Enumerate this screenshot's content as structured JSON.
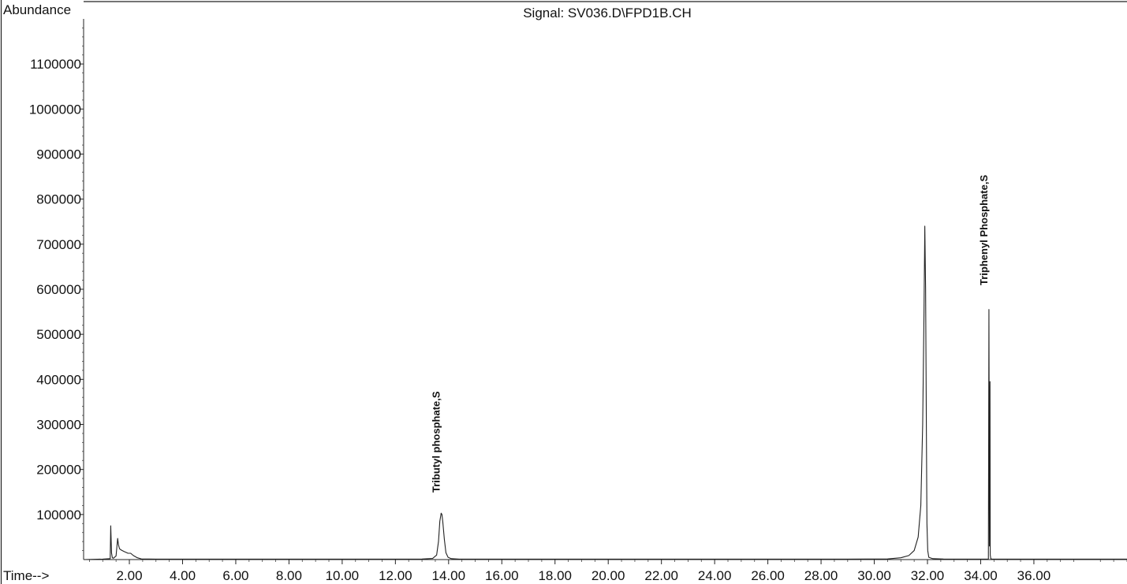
{
  "chart_data": {
    "type": "line",
    "title": "Signal: SV036.D\\FPD1B.CH",
    "ylabel": "Abundance",
    "xlabel": "Time-->",
    "xlim": [
      0.28,
      39.5
    ],
    "ylim": [
      0,
      1200000
    ],
    "x_ticks": [
      "2.00",
      "4.00",
      "6.00",
      "8.00",
      "10.00",
      "12.00",
      "14.00",
      "16.00",
      "18.00",
      "20.00",
      "22.00",
      "24.00",
      "26.00",
      "28.00",
      "30.00",
      "32.00",
      "34.00",
      "36.00"
    ],
    "y_ticks": [
      "100000",
      "200000",
      "300000",
      "400000",
      "500000",
      "600000",
      "700000",
      "800000",
      "900000",
      "1000000",
      "1100000"
    ],
    "grid": false,
    "series": [
      {
        "x": [
          0.28,
          1.0,
          1.28,
          1.3,
          1.33,
          1.36,
          1.4,
          1.5,
          1.56,
          1.59,
          1.63,
          1.7,
          1.8,
          1.95,
          2.05,
          2.15,
          2.3,
          2.45,
          3.0,
          6.0,
          10.0,
          12.0,
          13.0,
          13.4,
          13.55,
          13.62,
          13.67,
          13.72,
          13.75,
          13.78,
          13.84,
          13.9,
          13.98,
          14.1,
          14.4,
          16.0,
          20.0,
          25.0,
          29.0,
          30.5,
          31.0,
          31.3,
          31.5,
          31.65,
          31.75,
          31.82,
          31.87,
          31.9,
          31.93,
          31.96,
          31.98,
          32.01,
          32.05,
          32.2,
          32.6,
          33.0,
          33.8,
          34.29,
          34.31,
          34.33,
          34.35,
          34.36,
          34.38,
          34.42,
          35.0,
          37.0,
          39.5
        ],
        "y": [
          0,
          1000,
          2000,
          75000,
          15000,
          4000,
          3000,
          8000,
          47000,
          33000,
          24000,
          21000,
          18000,
          14000,
          14000,
          9000,
          4000,
          1500,
          1000,
          1000,
          1000,
          1000,
          1200,
          2500,
          10000,
          40000,
          85000,
          103000,
          100000,
          85000,
          45000,
          15000,
          5000,
          2000,
          1000,
          1000,
          1000,
          1000,
          1000,
          1500,
          4000,
          9000,
          20000,
          50000,
          120000,
          300000,
          550000,
          740000,
          600000,
          280000,
          80000,
          20000,
          5000,
          2000,
          1200,
          1000,
          1000,
          1200,
          555000,
          30000,
          395000,
          10000,
          2000,
          1000,
          1000,
          1000,
          1000
        ]
      }
    ],
    "annotations": [
      {
        "text": "Tributyl phosphate,S",
        "x": 13.72
      },
      {
        "text": "Triphenyl Phosphate,S",
        "x": 34.31
      }
    ]
  }
}
